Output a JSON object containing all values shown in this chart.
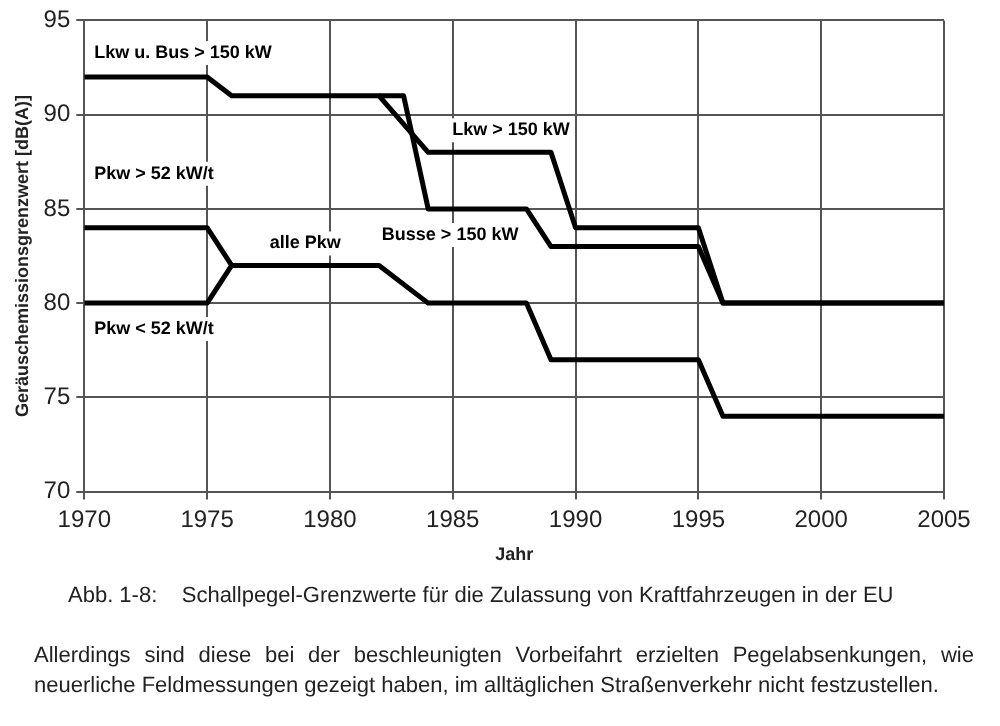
{
  "chart_data": {
    "type": "line",
    "xlabel": "Jahr",
    "ylabel": "Geräuschemissionsgrenzwert [dB(A)]",
    "xlim": [
      1970,
      2005
    ],
    "xticks": [
      1970,
      1975,
      1980,
      1985,
      1990,
      1995,
      2000,
      2005
    ],
    "ylim": [
      70,
      95
    ],
    "yticks": [
      70,
      75,
      80,
      85,
      90,
      95
    ],
    "grid": true,
    "legend": false,
    "marker": "none",
    "line_style": "solid",
    "series": [
      {
        "name": "Lkw > 150 kW",
        "color": "#000000",
        "x": [
          1970,
          1975,
          1976,
          1982,
          1984,
          1989,
          1990,
          1995,
          1996,
          2005
        ],
        "values": [
          92,
          92,
          91,
          91,
          88,
          88,
          84,
          84,
          80,
          80
        ]
      },
      {
        "name": "Busse > 150 kW",
        "color": "#000000",
        "x": [
          1982,
          1983,
          1984,
          1988,
          1989,
          1995,
          1996,
          2005
        ],
        "values": [
          91,
          91,
          85,
          85,
          83,
          83,
          80,
          80
        ]
      },
      {
        "name": "Pkw > 52 kW/t",
        "color": "#000000",
        "x": [
          1970,
          1975,
          1976,
          1982,
          1984,
          1988,
          1989,
          1995,
          1996,
          2005
        ],
        "values": [
          84,
          84,
          82,
          82,
          80,
          80,
          77,
          77,
          74,
          74
        ]
      },
      {
        "name": "Pkw < 52 kW/t",
        "color": "#000000",
        "x": [
          1970,
          1975,
          1976
        ],
        "values": [
          80,
          80,
          82
        ]
      }
    ],
    "annotations": [
      "Abb. 1-8:    Schallpegel-Grenzwerte für die Zulassung von Kraftfahrzeugen in der EU",
      "Allerdings sind diese bei der beschleunigten Vorbeifahrt erzielten Pegelabsenkungen, wie neuerliche Feldmessungen gezeigt haben, im alltäglichen Straßenverkehr nicht festzustellen.",
      {
        "text": "Lkw u. Bus > 150 kW",
        "x": 1970,
        "y": 92
      },
      {
        "text": "alle Pkw",
        "x": 1979,
        "y": 82
      }
    ]
  }
}
